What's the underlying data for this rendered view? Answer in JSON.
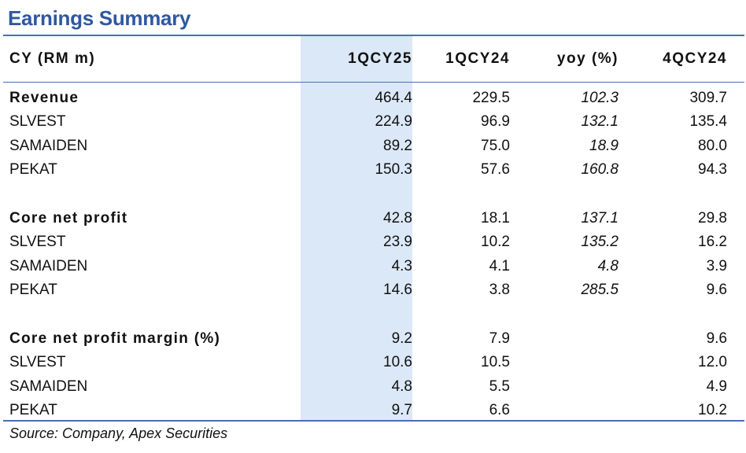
{
  "title": "Earnings Summary",
  "header": {
    "label": "CY (RM m)",
    "col1": "1QCY25",
    "col2": "1QCY24",
    "col3": "yoy (%)",
    "col4": "4QCY24"
  },
  "rows": [
    {
      "label": "Revenue",
      "bold": true,
      "v1": "464.4",
      "v2": "229.5",
      "v3": "102.3",
      "v4": "309.7"
    },
    {
      "label": "SLVEST",
      "bold": false,
      "v1": "224.9",
      "v2": "96.9",
      "v3": "132.1",
      "v4": "135.4"
    },
    {
      "label": "SAMAIDEN",
      "bold": false,
      "v1": "89.2",
      "v2": "75.0",
      "v3": "18.9",
      "v4": "80.0"
    },
    {
      "label": "PEKAT",
      "bold": false,
      "v1": "150.3",
      "v2": "57.6",
      "v3": "160.8",
      "v4": "94.3"
    },
    {
      "label": "Core net profit",
      "bold": true,
      "v1": "42.8",
      "v2": "18.1",
      "v3": "137.1",
      "v4": "29.8"
    },
    {
      "label": "SLVEST",
      "bold": false,
      "v1": "23.9",
      "v2": "10.2",
      "v3": "135.2",
      "v4": "16.2"
    },
    {
      "label": "SAMAIDEN",
      "bold": false,
      "v1": "4.3",
      "v2": "4.1",
      "v3": "4.8",
      "v4": "3.9"
    },
    {
      "label": "PEKAT",
      "bold": false,
      "v1": "14.6",
      "v2": "3.8",
      "v3": "285.5",
      "v4": "9.6"
    },
    {
      "label": "Core net profit margin (%)",
      "bold": true,
      "v1": "9.2",
      "v2": "7.9",
      "v3": "",
      "v4": "9.6"
    },
    {
      "label": "SLVEST",
      "bold": false,
      "v1": "10.6",
      "v2": "10.5",
      "v3": "",
      "v4": "12.0"
    },
    {
      "label": "SAMAIDEN",
      "bold": false,
      "v1": "4.8",
      "v2": "5.5",
      "v3": "",
      "v4": "4.9"
    },
    {
      "label": "PEKAT",
      "bold": false,
      "v1": "9.7",
      "v2": "6.6",
      "v3": "",
      "v4": "10.2"
    }
  ],
  "source": "Source: Company, Apex Securities",
  "colors": {
    "title": "#2e58a0",
    "rule": "#4a6fb0",
    "highlight": "#dbe8f7"
  }
}
